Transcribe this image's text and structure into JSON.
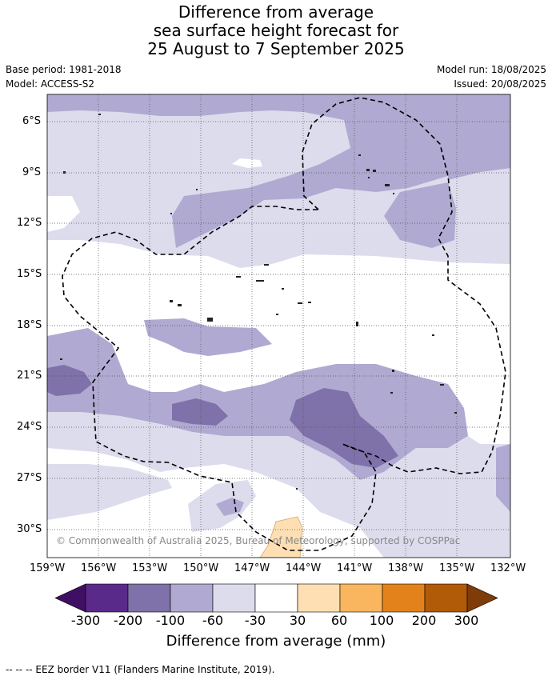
{
  "title": {
    "line1": "Difference from average",
    "line2": "sea surface height forecast for",
    "line3": "25 August to 7 September 2025"
  },
  "meta": {
    "base_period": "Base period: 1981-2018",
    "model": "Model: ACCESS-S2",
    "model_run": "Model run: 18/08/2025",
    "issued": "Issued: 20/08/2025"
  },
  "copyright": "© Commonwealth of Australia 2025, Bureau of Meteorology, supported by COSPPac",
  "lat_labels": [
    "6°S",
    "9°S",
    "12°S",
    "15°S",
    "18°S",
    "21°S",
    "24°S",
    "27°S",
    "30°S"
  ],
  "lon_labels": [
    "159°W",
    "156°W",
    "153°W",
    "150°W",
    "147°W",
    "144°W",
    "141°W",
    "138°W",
    "135°W",
    "132°W"
  ],
  "colorbar": {
    "ticks": [
      "-300",
      "-200",
      "-100",
      "-60",
      "-30",
      "30",
      "60",
      "100",
      "200",
      "300"
    ],
    "colors": [
      "#3f0f63",
      "#5a2a8a",
      "#7f71a9",
      "#b0a9d1",
      "#dcdced",
      "#ffffff",
      "#fddfb3",
      "#f9b65e",
      "#e3821a",
      "#b15a08",
      "#7f3b08"
    ],
    "title": "Difference from average (mm)"
  },
  "footnote": "--  --  -- EEZ border V11 (Flanders Marine Institute, 2019).",
  "map_colors": {
    "lightest": "#dcdced",
    "light": "#b0a9d1",
    "medium": "#7f71a9",
    "positive": "#fddfb3",
    "ocean_zero": "#ffffff"
  }
}
